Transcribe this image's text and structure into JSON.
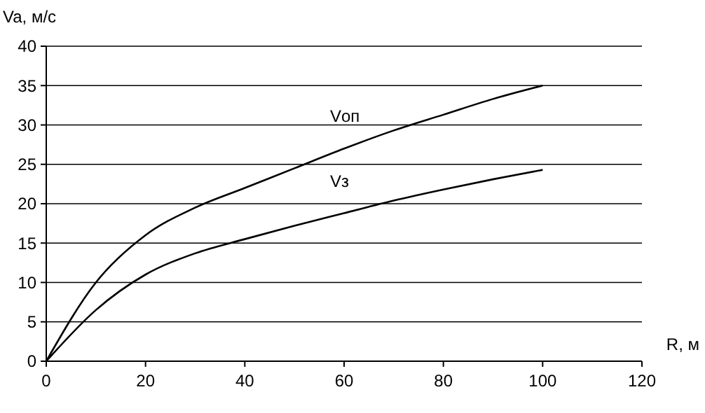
{
  "chart_data": {
    "type": "line",
    "xlabel": "R, м",
    "ylabel": "Va, м/с",
    "x": [
      0,
      10,
      20,
      30,
      40,
      50,
      60,
      70,
      80,
      90,
      100
    ],
    "series": [
      {
        "name": "Vоп",
        "color": "#000000",
        "values": [
          0,
          10,
          16,
          19.5,
          22,
          24.5,
          27,
          29.3,
          31.3,
          33.3,
          35
        ]
      },
      {
        "name": "Vз",
        "color": "#000000",
        "values": [
          0,
          6.5,
          11,
          13.7,
          15.5,
          17.2,
          18.8,
          20.4,
          21.8,
          23.1,
          24.3
        ]
      }
    ],
    "xlim": [
      0,
      120
    ],
    "xticks": [
      0,
      20,
      40,
      60,
      80,
      100,
      120
    ],
    "ylim": [
      0,
      40
    ],
    "yticks": [
      0,
      5,
      10,
      15,
      20,
      25,
      30,
      35,
      40
    ],
    "grid": "y",
    "marker": "none",
    "line_style": "solid"
  }
}
